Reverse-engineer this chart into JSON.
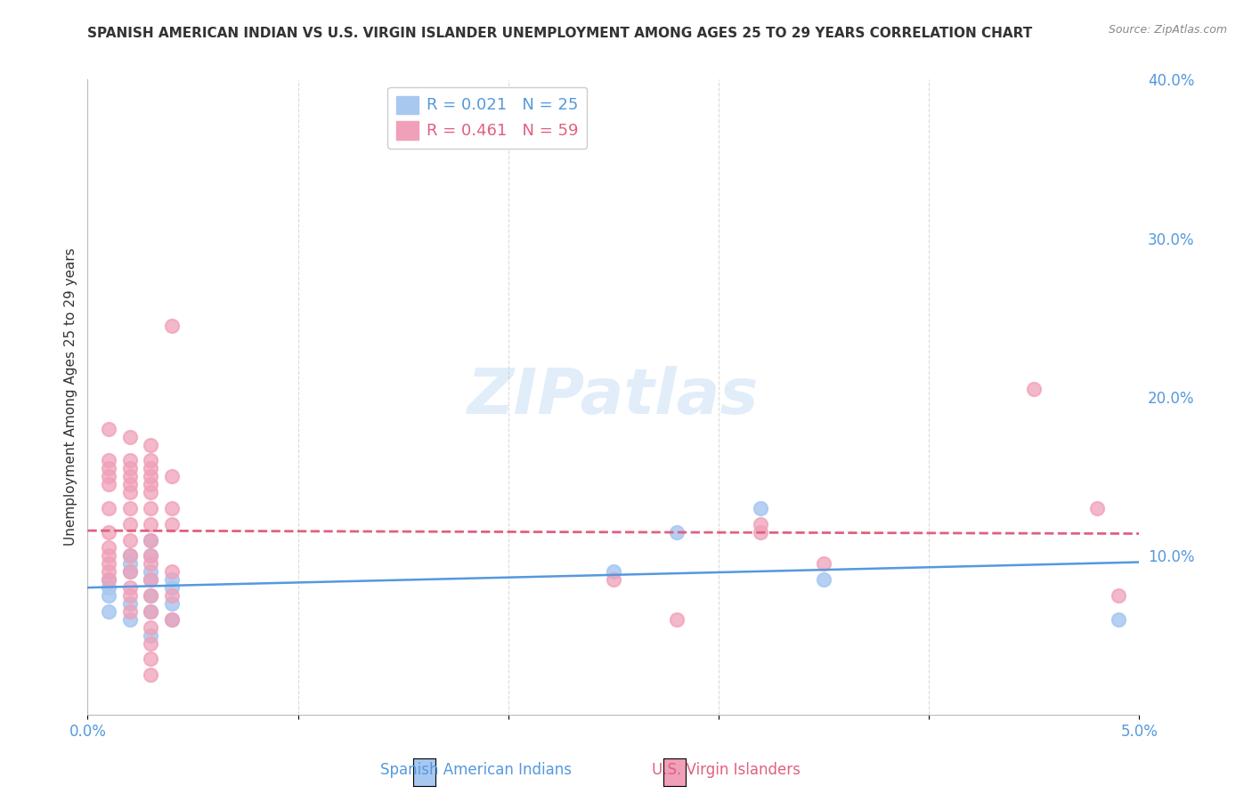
{
  "title": "SPANISH AMERICAN INDIAN VS U.S. VIRGIN ISLANDER UNEMPLOYMENT AMONG AGES 25 TO 29 YEARS CORRELATION CHART",
  "source": "Source: ZipAtlas.com",
  "ylabel": "Unemployment Among Ages 25 to 29 years",
  "xlabel": "",
  "xlim": [
    0.0,
    0.05
  ],
  "ylim": [
    0.0,
    0.4
  ],
  "xticks": [
    0.0,
    0.01,
    0.02,
    0.03,
    0.04,
    0.05
  ],
  "yticks": [
    0.0,
    0.1,
    0.2,
    0.3,
    0.4
  ],
  "xtick_labels": [
    "0.0%",
    "",
    "",
    "",
    "",
    "5.0%"
  ],
  "ytick_labels": [
    "",
    "10.0%",
    "20.0%",
    "30.0%",
    "40.0%"
  ],
  "background_color": "#ffffff",
  "watermark": "ZIPatlas",
  "legend_entries": [
    {
      "label": "R = 0.021   N = 25",
      "color": "#a8c8f0"
    },
    {
      "label": "R = 0.461   N = 59",
      "color": "#f0a0b8"
    }
  ],
  "series1_color": "#a8c8f0",
  "series2_color": "#f0a0b8",
  "trendline1_color": "#5599dd",
  "trendline2_color": "#e06080",
  "grid_color": "#cccccc",
  "right_axis_color": "#5599dd",
  "series1": {
    "x": [
      0.001,
      0.001,
      0.001,
      0.001,
      0.002,
      0.002,
      0.002,
      0.002,
      0.002,
      0.003,
      0.003,
      0.003,
      0.003,
      0.003,
      0.003,
      0.003,
      0.004,
      0.004,
      0.004,
      0.004,
      0.025,
      0.028,
      0.032,
      0.035,
      0.049
    ],
    "y": [
      0.085,
      0.08,
      0.075,
      0.065,
      0.1,
      0.095,
      0.09,
      0.07,
      0.06,
      0.11,
      0.1,
      0.09,
      0.085,
      0.075,
      0.065,
      0.05,
      0.085,
      0.08,
      0.07,
      0.06,
      0.09,
      0.115,
      0.13,
      0.085,
      0.06
    ],
    "R": 0.021,
    "N": 25
  },
  "series2": {
    "x": [
      0.001,
      0.001,
      0.001,
      0.001,
      0.001,
      0.001,
      0.001,
      0.001,
      0.001,
      0.001,
      0.001,
      0.001,
      0.002,
      0.002,
      0.002,
      0.002,
      0.002,
      0.002,
      0.002,
      0.002,
      0.002,
      0.002,
      0.002,
      0.002,
      0.002,
      0.002,
      0.003,
      0.003,
      0.003,
      0.003,
      0.003,
      0.003,
      0.003,
      0.003,
      0.003,
      0.003,
      0.003,
      0.003,
      0.003,
      0.003,
      0.003,
      0.003,
      0.003,
      0.003,
      0.004,
      0.004,
      0.004,
      0.004,
      0.004,
      0.004,
      0.004,
      0.025,
      0.028,
      0.032,
      0.032,
      0.035,
      0.045,
      0.048,
      0.049
    ],
    "y": [
      0.18,
      0.16,
      0.155,
      0.15,
      0.145,
      0.13,
      0.115,
      0.105,
      0.1,
      0.095,
      0.09,
      0.085,
      0.175,
      0.16,
      0.155,
      0.15,
      0.145,
      0.14,
      0.13,
      0.12,
      0.11,
      0.1,
      0.09,
      0.08,
      0.075,
      0.065,
      0.17,
      0.16,
      0.155,
      0.15,
      0.145,
      0.14,
      0.13,
      0.12,
      0.11,
      0.1,
      0.095,
      0.085,
      0.075,
      0.065,
      0.055,
      0.045,
      0.035,
      0.025,
      0.245,
      0.15,
      0.13,
      0.12,
      0.09,
      0.075,
      0.06,
      0.085,
      0.06,
      0.12,
      0.115,
      0.095,
      0.205,
      0.13,
      0.075
    ],
    "R": 0.461,
    "N": 59
  }
}
